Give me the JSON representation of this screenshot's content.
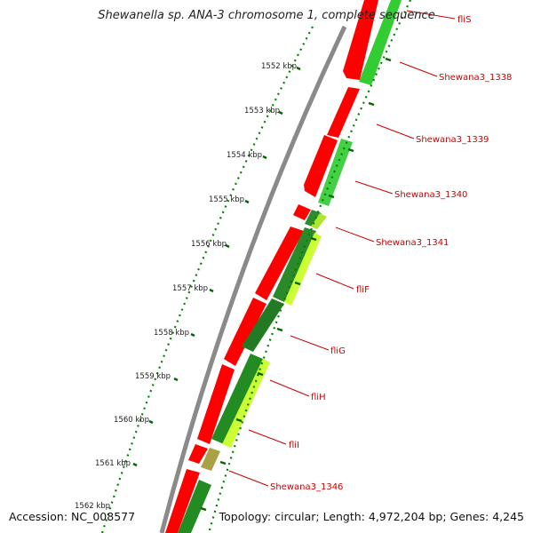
{
  "title": "Shewanella sp. ANA-3 chromosome 1, complete sequence",
  "footer": {
    "accession": "Accession: NC_008577",
    "summary": "Topology: circular; Length: 4,972,204 bp; Genes: 4,245"
  },
  "ruler_labels": [
    "1552 kbp",
    "1553 kbp",
    "1554 kbp",
    "1555 kbp",
    "1556 kbp",
    "1557 kbp",
    "1558 kbp",
    "1559 kbp",
    "1560 kbp",
    "1561 kbp",
    "1562 kbp"
  ],
  "gene_labels": [
    "fliS",
    "Shewana3_1338",
    "Shewana3_1339",
    "Shewana3_1340",
    "Shewana3_1341",
    "fliF",
    "fliG",
    "fliH",
    "fliI",
    "Shewana3_1346"
  ],
  "colors": {
    "backbone": "#888888",
    "cds": "#ff0000",
    "track_light": "#3fcc3f",
    "track_dark": "#228b22",
    "track_yellow": "#ccff33",
    "ticks": "#006600",
    "labels": "#cc0000"
  }
}
